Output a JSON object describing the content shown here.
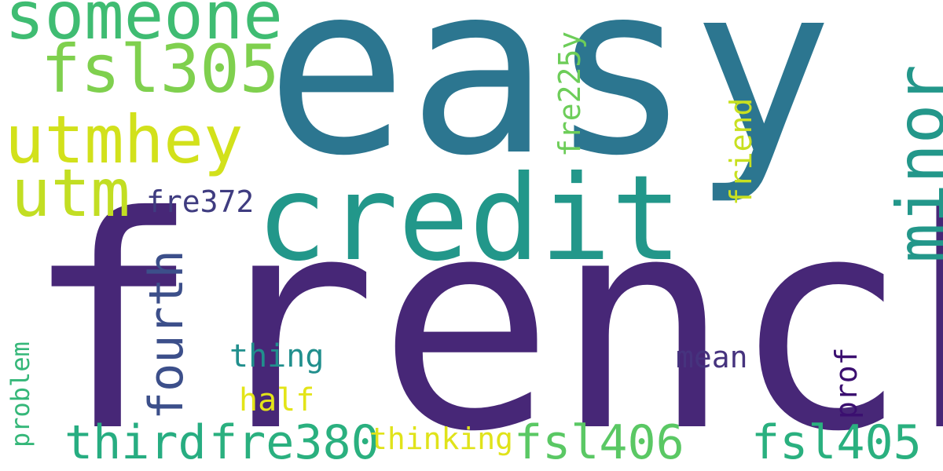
{
  "words": [
    {
      "id": "easy",
      "text": "easy",
      "color": "#2c7690",
      "weight": 1.0
    },
    {
      "id": "french",
      "text": "french",
      "color": "#472777",
      "weight": 0.98
    },
    {
      "id": "credit",
      "text": "credit",
      "color": "#22978a",
      "weight": 0.46
    },
    {
      "id": "someone",
      "text": "someone",
      "color": "#3fbc72",
      "weight": 0.26
    },
    {
      "id": "fsl305",
      "text": "fsl305",
      "color": "#7fd04e",
      "weight": 0.26
    },
    {
      "id": "utmhey",
      "text": "utmhey",
      "color": "#d2e11b",
      "weight": 0.26
    },
    {
      "id": "utm",
      "text": "utm",
      "color": "#c2de23",
      "weight": 0.26
    },
    {
      "id": "minor",
      "text": "minor",
      "color": "#23978a",
      "weight": 0.26
    },
    {
      "id": "fsl406",
      "text": "fsl406",
      "color": "#5ac864",
      "weight": 0.17
    },
    {
      "id": "fsl405",
      "text": "fsl405",
      "color": "#2ab07f",
      "weight": 0.17
    },
    {
      "id": "third",
      "text": "third",
      "color": "#27ad81",
      "weight": 0.17
    },
    {
      "id": "fre380",
      "text": "fre380",
      "color": "#2ab07f",
      "weight": 0.17
    },
    {
      "id": "fourth",
      "text": "fourth",
      "color": "#3c4f8a",
      "weight": 0.17
    },
    {
      "id": "fre372",
      "text": "fre372",
      "color": "#3f3c80",
      "weight": 0.1
    },
    {
      "id": "fre225y",
      "text": "fre225y",
      "color": "#6dcd59",
      "weight": 0.1
    },
    {
      "id": "friend",
      "text": "friend",
      "color": "#c8e020",
      "weight": 0.1
    },
    {
      "id": "thing",
      "text": "thing",
      "color": "#218f8d",
      "weight": 0.1
    },
    {
      "id": "mean",
      "text": "mean",
      "color": "#46337e",
      "weight": 0.1
    },
    {
      "id": "half",
      "text": "half",
      "color": "#e3e418",
      "weight": 0.1
    },
    {
      "id": "thinking",
      "text": "thinking",
      "color": "#e0e31a",
      "weight": 0.1
    },
    {
      "id": "prof",
      "text": "prof",
      "color": "#3b0f70",
      "weight": 0.1
    },
    {
      "id": "problem",
      "text": "problem",
      "color": "#35b779",
      "weight": 0.08
    }
  ]
}
